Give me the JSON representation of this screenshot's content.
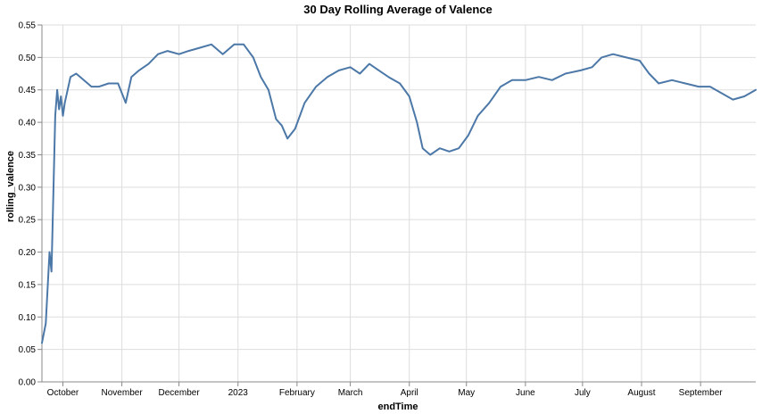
{
  "chart_data": {
    "type": "line",
    "title": "30 Day Rolling Average of Valence",
    "xlabel": "endTime",
    "ylabel": "rolling_valence",
    "x_tick_labels": [
      "October",
      "November",
      "December",
      "2023",
      "February",
      "March",
      "April",
      "May",
      "June",
      "July",
      "August",
      "September"
    ],
    "x_tick_dates": [
      "2022-10-01",
      "2022-11-01",
      "2022-12-01",
      "2023-01-01",
      "2023-02-01",
      "2023-03-01",
      "2023-04-01",
      "2023-05-01",
      "2023-06-01",
      "2023-07-01",
      "2023-08-01",
      "2023-09-01"
    ],
    "xlim": [
      "2022-09-20",
      "2023-09-30"
    ],
    "ylim": [
      0,
      0.55
    ],
    "y_ticks": [
      "0.00",
      "0.05",
      "0.10",
      "0.15",
      "0.20",
      "0.25",
      "0.30",
      "0.35",
      "0.40",
      "0.45",
      "0.50",
      "0.55"
    ],
    "grid": true,
    "color": "#4c78a8",
    "series": [
      {
        "x": [
          "2022-09-20",
          "2022-09-22",
          "2022-09-24",
          "2022-09-25",
          "2022-09-26",
          "2022-09-27",
          "2022-09-28",
          "2022-09-29",
          "2022-09-30",
          "2022-10-01",
          "2022-10-02",
          "2022-10-05",
          "2022-10-08",
          "2022-10-12",
          "2022-10-16",
          "2022-10-20",
          "2022-10-25",
          "2022-10-30",
          "2022-11-03",
          "2022-11-06",
          "2022-11-10",
          "2022-11-15",
          "2022-11-20",
          "2022-11-25",
          "2022-12-01",
          "2022-12-06",
          "2022-12-12",
          "2022-12-18",
          "2022-12-24",
          "2022-12-30",
          "2023-01-04",
          "2023-01-09",
          "2023-01-13",
          "2023-01-17",
          "2023-01-21",
          "2023-01-24",
          "2023-01-27",
          "2023-01-31",
          "2023-02-05",
          "2023-02-11",
          "2023-02-17",
          "2023-02-23",
          "2023-03-01",
          "2023-03-06",
          "2023-03-11",
          "2023-03-16",
          "2023-03-21",
          "2023-03-27",
          "2023-04-01",
          "2023-04-05",
          "2023-04-08",
          "2023-04-12",
          "2023-04-17",
          "2023-04-22",
          "2023-04-27",
          "2023-05-02",
          "2023-05-07",
          "2023-05-13",
          "2023-05-19",
          "2023-05-25",
          "2023-06-01",
          "2023-06-08",
          "2023-06-15",
          "2023-06-22",
          "2023-06-30",
          "2023-07-06",
          "2023-07-11",
          "2023-07-17",
          "2023-07-24",
          "2023-07-31",
          "2023-08-05",
          "2023-08-10",
          "2023-08-17",
          "2023-08-24",
          "2023-08-31",
          "2023-09-06",
          "2023-09-12",
          "2023-09-18",
          "2023-09-24",
          "2023-09-30"
        ],
        "y": [
          0.06,
          0.09,
          0.2,
          0.17,
          0.29,
          0.41,
          0.45,
          0.42,
          0.44,
          0.41,
          0.43,
          0.47,
          0.475,
          0.465,
          0.455,
          0.455,
          0.46,
          0.46,
          0.43,
          0.47,
          0.48,
          0.49,
          0.505,
          0.51,
          0.505,
          0.51,
          0.515,
          0.52,
          0.505,
          0.52,
          0.52,
          0.5,
          0.47,
          0.45,
          0.405,
          0.395,
          0.375,
          0.39,
          0.43,
          0.455,
          0.47,
          0.48,
          0.485,
          0.475,
          0.49,
          0.48,
          0.47,
          0.46,
          0.44,
          0.4,
          0.36,
          0.35,
          0.36,
          0.355,
          0.36,
          0.38,
          0.41,
          0.43,
          0.455,
          0.465,
          0.465,
          0.47,
          0.465,
          0.475,
          0.48,
          0.485,
          0.5,
          0.505,
          0.5,
          0.495,
          0.475,
          0.46,
          0.465,
          0.46,
          0.455,
          0.455,
          0.445,
          0.435,
          0.44,
          0.45
        ]
      }
    ]
  }
}
